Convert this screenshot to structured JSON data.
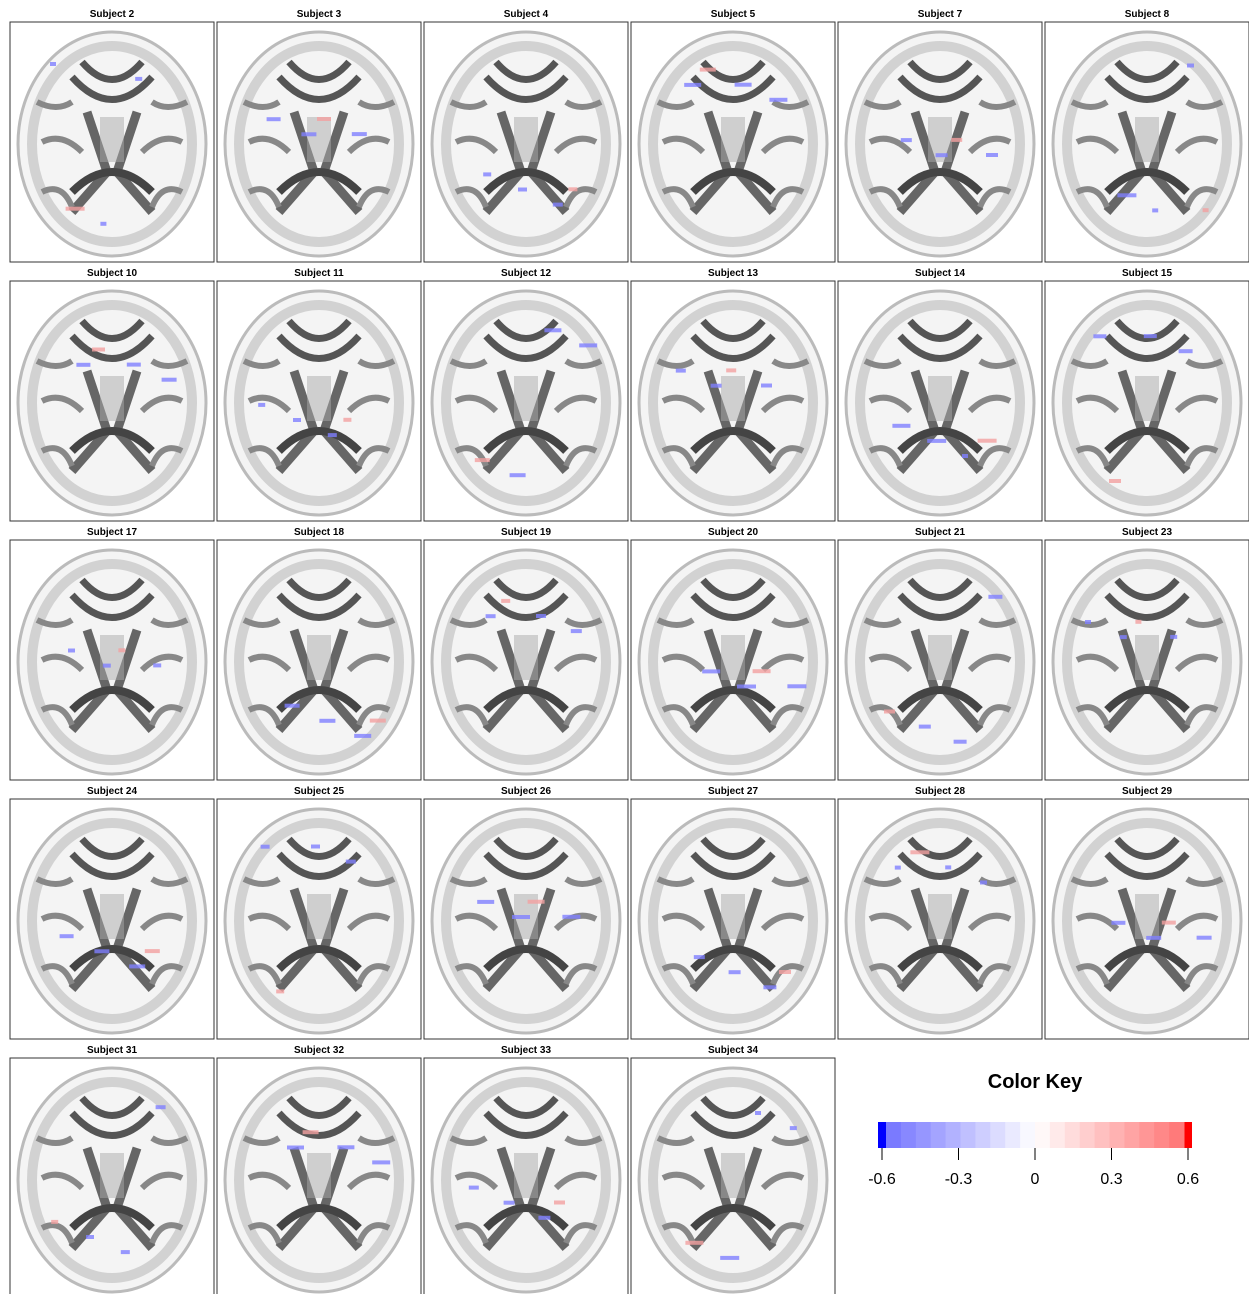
{
  "panels": [
    {
      "title": "Subject 2"
    },
    {
      "title": "Subject 3"
    },
    {
      "title": "Subject 4"
    },
    {
      "title": "Subject 5"
    },
    {
      "title": "Subject 7"
    },
    {
      "title": "Subject 8"
    },
    {
      "title": "Subject 10"
    },
    {
      "title": "Subject 11"
    },
    {
      "title": "Subject 12"
    },
    {
      "title": "Subject 13"
    },
    {
      "title": "Subject 14"
    },
    {
      "title": "Subject 15"
    },
    {
      "title": "Subject 17"
    },
    {
      "title": "Subject 18"
    },
    {
      "title": "Subject 19"
    },
    {
      "title": "Subject 20"
    },
    {
      "title": "Subject 21"
    },
    {
      "title": "Subject 23"
    },
    {
      "title": "Subject 24"
    },
    {
      "title": "Subject 25"
    },
    {
      "title": "Subject 26"
    },
    {
      "title": "Subject 27"
    },
    {
      "title": "Subject 28"
    },
    {
      "title": "Subject 29"
    },
    {
      "title": "Subject 31"
    },
    {
      "title": "Subject 32"
    },
    {
      "title": "Subject 33"
    },
    {
      "title": "Subject 34"
    }
  ],
  "color_key": {
    "title": "Color Key",
    "lim": [
      -0.6,
      0.6
    ],
    "ticks": [
      -0.6,
      -0.3,
      0,
      0.3,
      0.6
    ],
    "low_color": "#0000ff",
    "mid_color": "#ffffff",
    "high_color": "#ff0000"
  }
}
